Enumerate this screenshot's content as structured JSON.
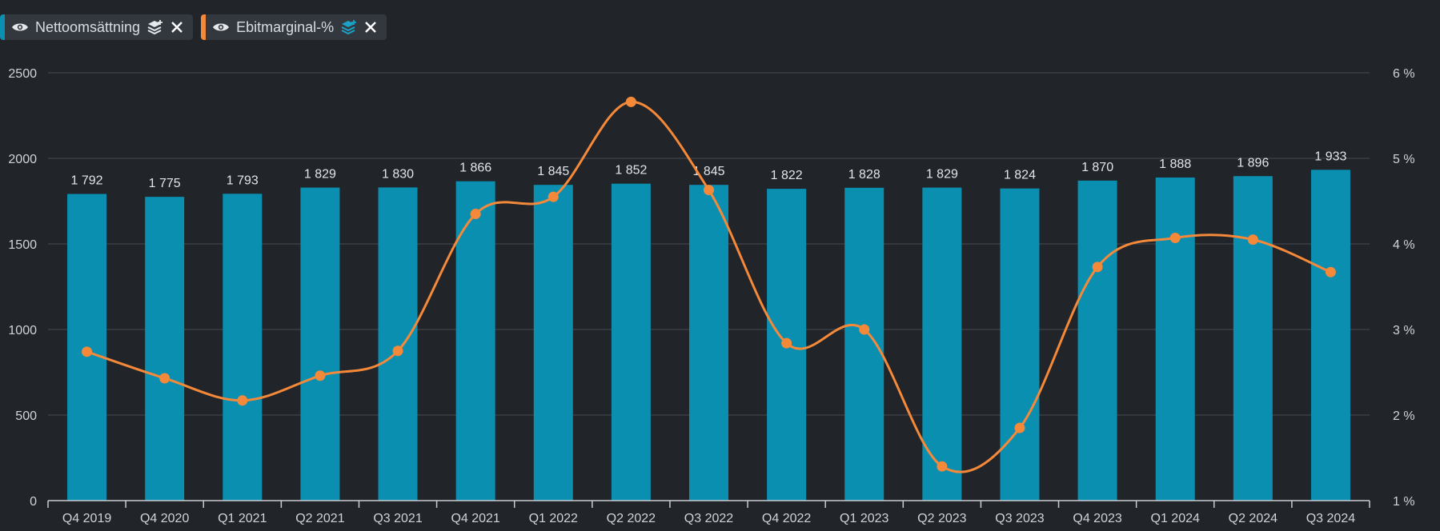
{
  "legend": {
    "series1_label": "Nettoomsättning",
    "series2_label": "Ebitmarginal-%"
  },
  "colors": {
    "bar": "#0a8fb0",
    "line": "#f5893a",
    "grid": "#3a3f46",
    "axis": "#c9cdd3"
  },
  "chart_data": {
    "type": "bar",
    "categories": [
      "Q4 2019",
      "Q4 2020",
      "Q1 2021",
      "Q2 2021",
      "Q3 2021",
      "Q4 2021",
      "Q1 2022",
      "Q2 2022",
      "Q3 2022",
      "Q4 2022",
      "Q1 2023",
      "Q2 2023",
      "Q3 2023",
      "Q4 2023",
      "Q1 2024",
      "Q2 2024",
      "Q3 2024"
    ],
    "series": [
      {
        "name": "Nettoomsättning",
        "type": "bar",
        "axis": "left",
        "values": [
          1792,
          1775,
          1793,
          1829,
          1830,
          1866,
          1845,
          1852,
          1845,
          1822,
          1828,
          1829,
          1824,
          1870,
          1888,
          1896,
          1933
        ],
        "labels": [
          "1 792",
          "1 775",
          "1 793",
          "1 829",
          "1 830",
          "1 866",
          "1 845",
          "1 852",
          "1 845",
          "1 822",
          "1 828",
          "1 829",
          "1 824",
          "1 870",
          "1 888",
          "1 896",
          "1 933"
        ]
      },
      {
        "name": "Ebitmarginal-%",
        "type": "line",
        "axis": "right",
        "values": [
          2.74,
          2.43,
          2.17,
          2.46,
          2.75,
          4.35,
          4.55,
          5.66,
          4.63,
          2.84,
          3.0,
          1.4,
          1.85,
          3.73,
          4.07,
          4.05,
          3.67
        ]
      }
    ],
    "y_left": {
      "min": 0,
      "max": 2500,
      "ticks": [
        "0",
        "500",
        "1000",
        "1500",
        "2000",
        "2500"
      ]
    },
    "y_right": {
      "min": 1,
      "max": 6,
      "ticks": [
        "1 %",
        "2 %",
        "3 %",
        "4 %",
        "5 %",
        "6 %"
      ]
    },
    "grid": true,
    "legend_position": "top-left"
  }
}
